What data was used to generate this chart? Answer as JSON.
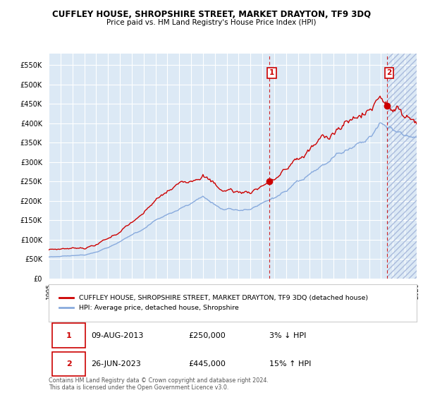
{
  "title": "CUFFLEY HOUSE, SHROPSHIRE STREET, MARKET DRAYTON, TF9 3DQ",
  "subtitle": "Price paid vs. HM Land Registry's House Price Index (HPI)",
  "bg_color": "#dce9f5",
  "grid_color": "#ffffff",
  "hpi_color": "#88aadd",
  "price_color": "#cc0000",
  "ylim": [
    0,
    580000
  ],
  "yticks": [
    0,
    50000,
    100000,
    150000,
    200000,
    250000,
    300000,
    350000,
    400000,
    450000,
    500000,
    550000
  ],
  "xlim_start": 1995.0,
  "xlim_end": 2026.0,
  "xtick_years": [
    1995,
    1996,
    1997,
    1998,
    1999,
    2000,
    2001,
    2002,
    2003,
    2004,
    2005,
    2006,
    2007,
    2008,
    2009,
    2010,
    2011,
    2012,
    2013,
    2014,
    2015,
    2016,
    2017,
    2018,
    2019,
    2020,
    2021,
    2022,
    2023,
    2024,
    2025,
    2026
  ],
  "sale1_x": 2013.58,
  "sale1_y": 250000,
  "sale1_label": "1",
  "sale2_x": 2023.48,
  "sale2_y": 445000,
  "sale2_label": "2",
  "legend_line1": "CUFFLEY HOUSE, SHROPSHIRE STREET, MARKET DRAYTON, TF9 3DQ (detached house)",
  "legend_line2": "HPI: Average price, detached house, Shropshire",
  "table_row1": [
    "1",
    "09-AUG-2013",
    "£250,000",
    "3% ↓ HPI"
  ],
  "table_row2": [
    "2",
    "26-JUN-2023",
    "£445,000",
    "15% ↑ HPI"
  ],
  "footnote": "Contains HM Land Registry data © Crown copyright and database right 2024.\nThis data is licensed under the Open Government Licence v3.0.",
  "hatch_color": "#aabbdd"
}
